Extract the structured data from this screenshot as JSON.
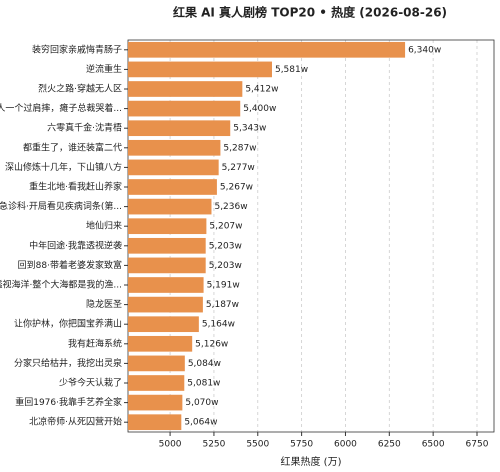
{
  "chart_data": {
    "type": "barh",
    "title": "红果 AI 真人剧榜 TOP20 • 热度 (2026-08-26)",
    "x_label": "红果热度 (万)",
    "categories": [
      "装穷回家亲戚悔青肠子",
      "逆流重生",
      "烈火之路·穿越无人区",
      "夫人一个过肩摔，瘫子总裁哭着...",
      "六零真千金·沈青梧",
      "都重生了，谁还装富二代",
      "深山修炼十几年，下山镇八方",
      "重生北地·看我赶山养家",
      "急诊科·开局看见疾病词条(第...",
      "地仙归来",
      "中年回途·我靠透视逆袭",
      "回到88·带着老婆发家致富",
      "透视海洋·整个大海都是我的渔...",
      "隐龙医圣",
      "让你护林，你把国宝养满山",
      "我有赶海系统",
      "分家只给枯井，我挖出灵泉",
      "少爷今天认栽了",
      "重回1976·我靠手艺养全家",
      "北凉帝师·从死囚营开始"
    ],
    "values": [
      6340,
      5581,
      5412,
      5400,
      5343,
      5287,
      5277,
      5267,
      5236,
      5207,
      5203,
      5203,
      5191,
      5187,
      5164,
      5126,
      5084,
      5081,
      5070,
      5064
    ],
    "value_labels": [
      "6,340w",
      "5,581w",
      "5,412w",
      "5,400w",
      "5,343w",
      "5,287w",
      "5,277w",
      "5,267w",
      "5,236w",
      "5,207w",
      "5,203w",
      "5,203w",
      "5,191w",
      "5,187w",
      "5,164w",
      "5,126w",
      "5,084w",
      "5,081w",
      "5,070w",
      "5,064w"
    ],
    "color": "#e8914c",
    "xlim": [
      4760,
      6847
    ],
    "xticks": [
      5000,
      5250,
      5500,
      5750,
      6000,
      6250,
      6500,
      6750
    ],
    "grid": true
  }
}
